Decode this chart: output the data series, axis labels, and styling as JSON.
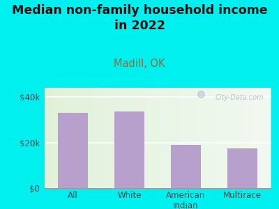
{
  "categories": [
    "All",
    "White",
    "American\nIndian",
    "Multirace"
  ],
  "values": [
    33000,
    33500,
    19000,
    17500
  ],
  "bar_color": "#b8a0cc",
  "bg_color": "#00EFEF",
  "plot_bg_top_left": "#e8f5e0",
  "plot_bg_bottom_right": "#f8faf5",
  "title": "Median non-family household income\nin 2022",
  "subtitle": "Madill, OK",
  "title_color": "#111111",
  "subtitle_color": "#996633",
  "ylabel_ticks": [
    0,
    20000,
    40000
  ],
  "ylabel_labels": [
    "$0",
    "$20k",
    "$40k"
  ],
  "ylim": [
    0,
    44000
  ],
  "watermark": "City-Data.com",
  "title_fontsize": 12.5,
  "subtitle_fontsize": 10.5,
  "tick_fontsize": 8.5
}
